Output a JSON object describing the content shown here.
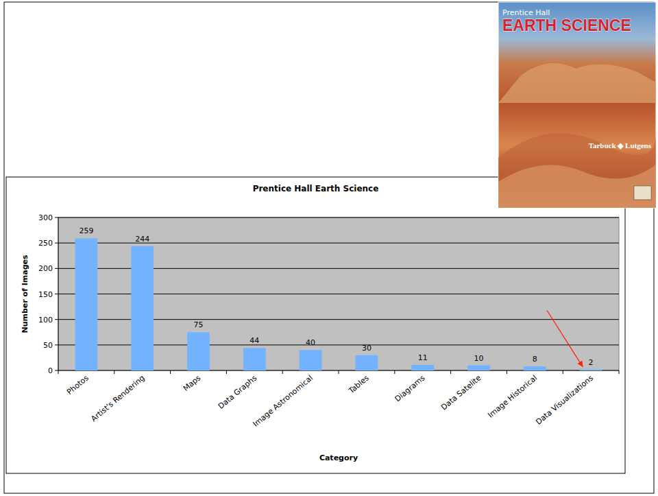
{
  "cover": {
    "publisher": "Prentice Hall",
    "title": "EARTH SCIENCE",
    "authors": "Tarbuck ◆ Lutgens"
  },
  "chart_data": {
    "type": "bar",
    "title": "Prentice Hall Earth Science",
    "x_label": "Category",
    "y_label": "Number of Images",
    "categories": [
      "Photos",
      "Artist's Rendering",
      "Maps",
      "Data Graphs",
      "Image Astronomical",
      "Tables",
      "Diagrams",
      "Data Satelite",
      "Image Historical",
      "Data Visualizations"
    ],
    "values": [
      259,
      244,
      75,
      44,
      40,
      30,
      11,
      10,
      8,
      2
    ],
    "color": "#73b2ff",
    "ylim": [
      0,
      300
    ],
    "yticks": [
      0,
      50,
      100,
      150,
      200,
      250,
      300
    ],
    "grid": true,
    "data_labels": true
  }
}
